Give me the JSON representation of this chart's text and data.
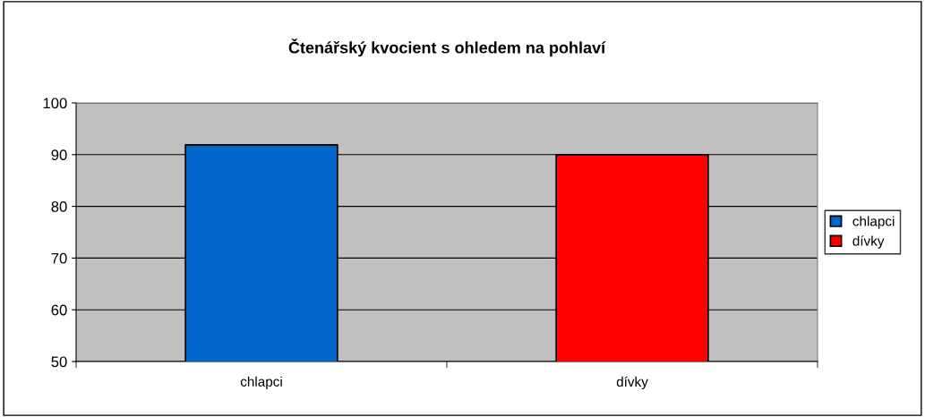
{
  "chart_data": {
    "type": "bar",
    "title": "Čtenářský kvocient s ohledem na pohlaví",
    "categories": [
      "chlapci",
      "dívky"
    ],
    "series": [
      {
        "name": "chlapci",
        "color": "#0066cc",
        "values": [
          91.9,
          null
        ]
      },
      {
        "name": "dívky",
        "color": "#ff0000",
        "values": [
          null,
          90.0
        ]
      }
    ],
    "ylim": [
      50,
      100
    ],
    "yticks": [
      50,
      60,
      70,
      80,
      90,
      100
    ],
    "grid": "y",
    "legend": "right"
  }
}
